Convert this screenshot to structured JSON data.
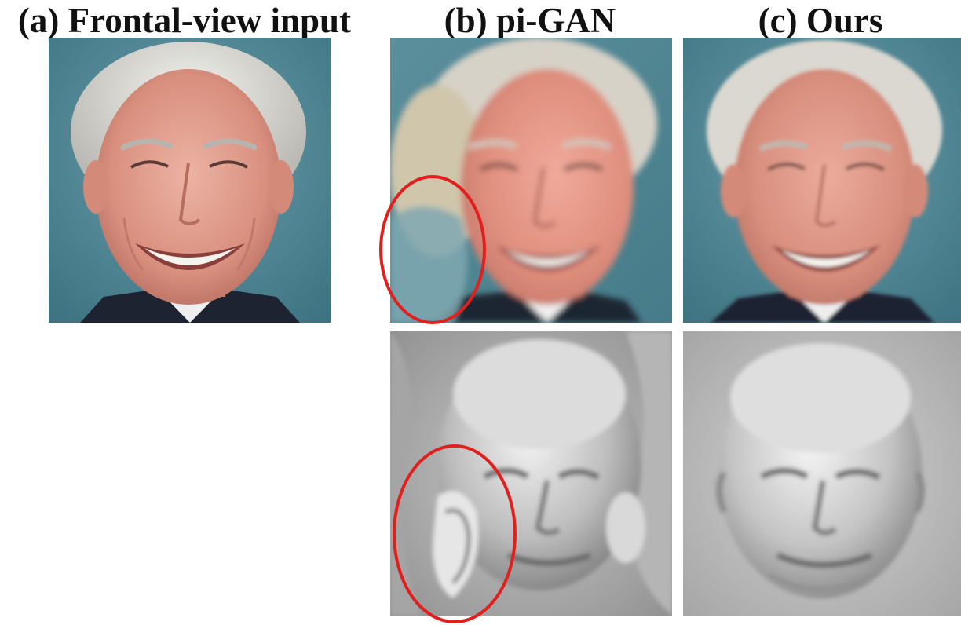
{
  "figure": {
    "captions": {
      "a": "(a) Frontal-view input",
      "b": "(b) pi-GAN",
      "c": "(c) Ours"
    }
  },
  "colors": {
    "background_teal": "#4f8795",
    "skin": "#e0a08f",
    "hair": "#dcdcd6",
    "suit": "#1d2330",
    "shirt": "#eeeeee",
    "mesh_gray": "#b7b7b7",
    "highlight_red": "#e0201e"
  }
}
